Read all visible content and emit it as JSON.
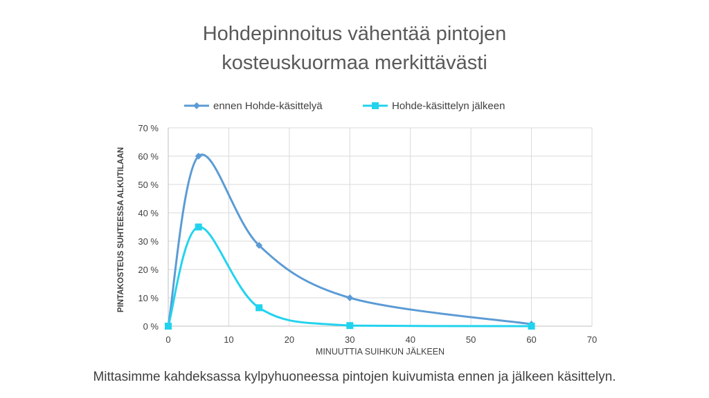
{
  "chart_data": {
    "type": "line",
    "title_lines": [
      "Hohdepinnoitus vähentää pintojen",
      "kosteuskuormaa merkittävästi"
    ],
    "xlabel": "MINUUTTIA SUIHKUN JÄLKEEN",
    "ylabel": "PINTAKOSTEUS SUHTEESSA ALKUTILAAN",
    "xlim": [
      0,
      70
    ],
    "ylim": [
      0,
      70
    ],
    "x_ticks": [
      0,
      10,
      20,
      30,
      40,
      50,
      60,
      70
    ],
    "x_tick_labels": [
      "0",
      "10",
      "20",
      "30",
      "40",
      "50",
      "60",
      "70"
    ],
    "y_ticks": [
      0,
      10,
      20,
      30,
      40,
      50,
      60,
      70
    ],
    "y_tick_labels": [
      "0 %",
      "10 %",
      "20 %",
      "30 %",
      "40 %",
      "50 %",
      "60 %",
      "70 %"
    ],
    "grid": true,
    "legend_position": "top",
    "smooth": true,
    "series": [
      {
        "name": "ennen Hohde-käsittelyä",
        "color": "#5B9BD5",
        "marker": "diamond",
        "x": [
          0,
          5,
          15,
          30,
          60
        ],
        "y": [
          0,
          60,
          28.5,
          10,
          0.7
        ]
      },
      {
        "name": "Hohde-käsittelyn jälkeen",
        "color": "#22D3EE",
        "marker": "square",
        "x": [
          0,
          5,
          15,
          30,
          60
        ],
        "y": [
          0,
          35,
          6.5,
          0.2,
          0
        ]
      }
    ]
  },
  "caption": "Mittasimme kahdeksassa kylpyhuoneessa pintojen kuivumista ennen ja jälkeen käsittelyn."
}
